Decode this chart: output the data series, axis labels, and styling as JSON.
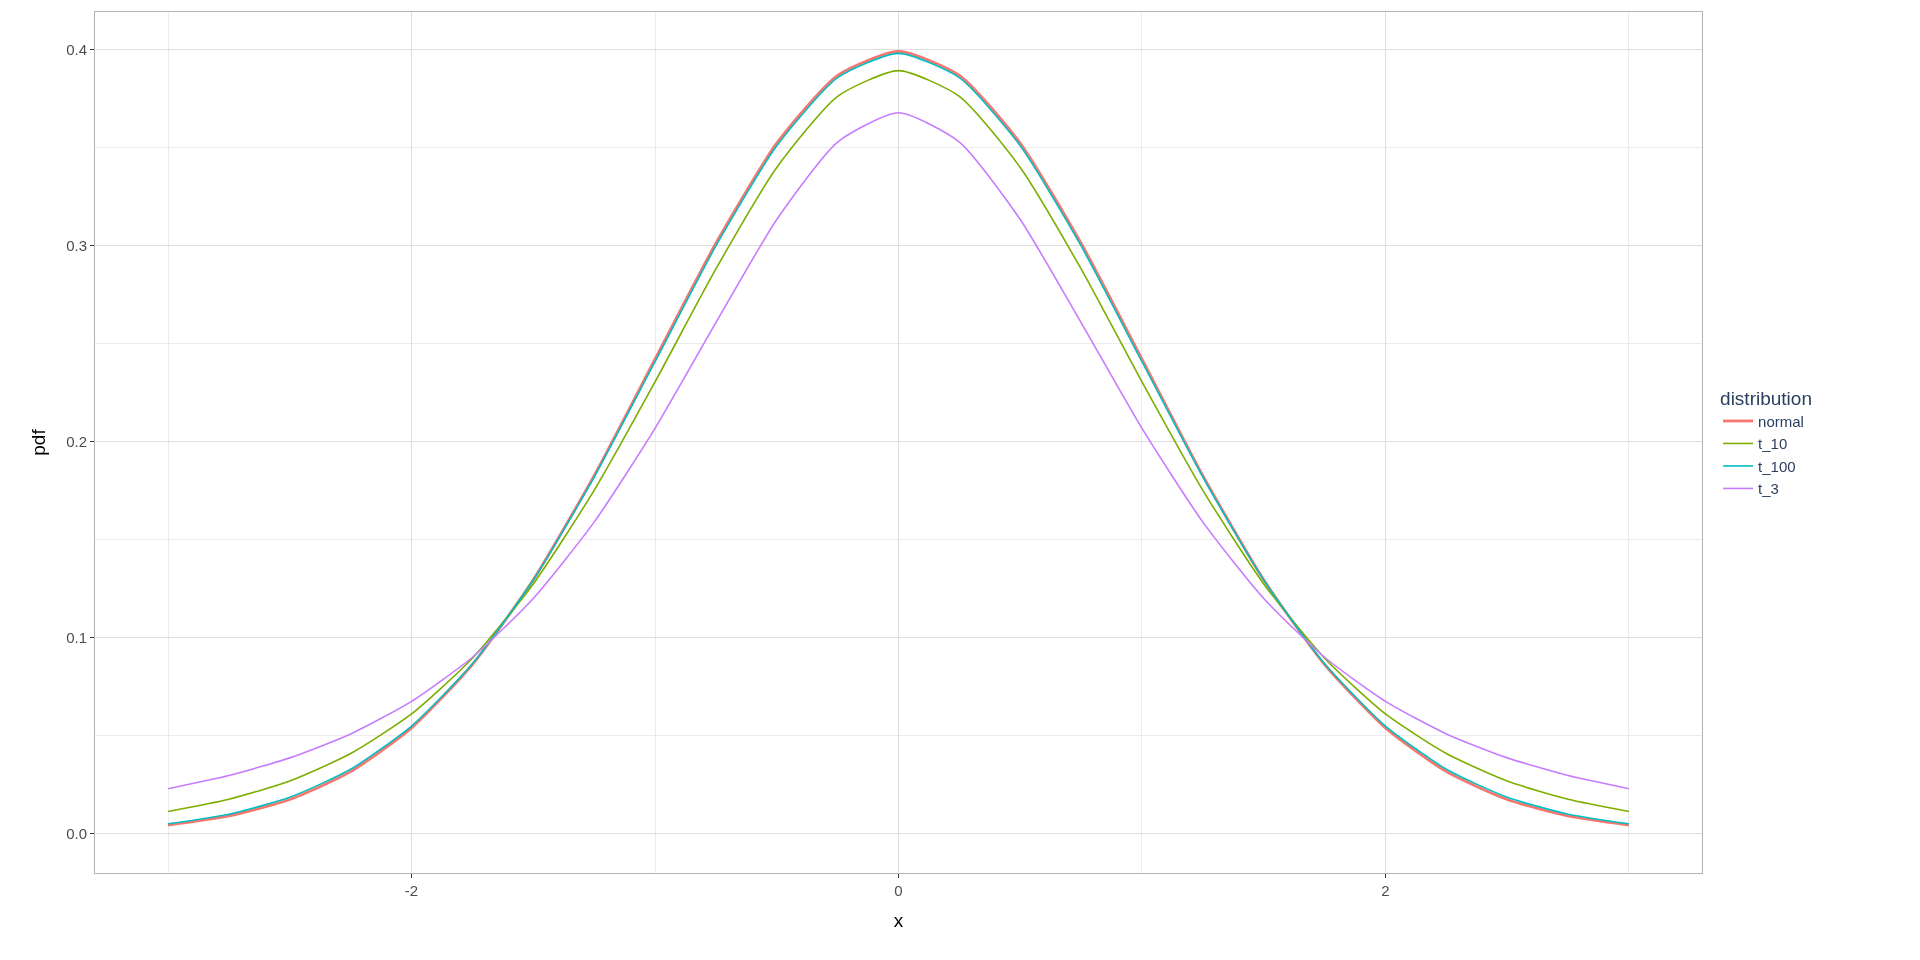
{
  "chart_data": {
    "type": "line",
    "xlabel": "x",
    "ylabel": "pdf",
    "legend_title": "distribution",
    "x": [
      -3,
      -2.75,
      -2.5,
      -2.25,
      -2,
      -1.75,
      -1.5,
      -1.25,
      -1,
      -0.75,
      -0.5,
      -0.25,
      0,
      0.25,
      0.5,
      0.75,
      1,
      1.25,
      1.5,
      1.75,
      2,
      2.25,
      2.5,
      2.75,
      3
    ],
    "series": [
      {
        "name": "normal",
        "color": "#f8766d",
        "values": [
          0.0044,
          0.0091,
          0.0175,
          0.0317,
          0.054,
          0.0863,
          0.1295,
          0.1826,
          0.242,
          0.3011,
          0.3521,
          0.3867,
          0.3989,
          0.3867,
          0.3521,
          0.3011,
          0.242,
          0.1826,
          0.1295,
          0.0863,
          0.054,
          0.0317,
          0.0175,
          0.0091,
          0.0044
        ]
      },
      {
        "name": "t_10",
        "color": "#7cae00",
        "values": [
          0.0114,
          0.0176,
          0.0269,
          0.0409,
          0.0611,
          0.0895,
          0.1274,
          0.1751,
          0.2304,
          0.288,
          0.3397,
          0.376,
          0.3891,
          0.376,
          0.3397,
          0.288,
          0.2304,
          0.1751,
          0.1274,
          0.0895,
          0.0611,
          0.0409,
          0.0269,
          0.0176,
          0.0114
        ]
      },
      {
        "name": "t_100",
        "color": "#00bfc4",
        "values": [
          0.0051,
          0.01,
          0.0186,
          0.0329,
          0.0549,
          0.0867,
          0.1294,
          0.1819,
          0.2407,
          0.2997,
          0.3508,
          0.3855,
          0.3979,
          0.3855,
          0.3508,
          0.2997,
          0.2407,
          0.1819,
          0.1294,
          0.0867,
          0.0549,
          0.0329,
          0.0186,
          0.01,
          0.0051
        ]
      },
      {
        "name": "t_3",
        "color": "#c77cff",
        "values": [
          0.023,
          0.0297,
          0.0387,
          0.0509,
          0.0675,
          0.09,
          0.12,
          0.1589,
          0.2067,
          0.2606,
          0.3132,
          0.3527,
          0.3676,
          0.3527,
          0.3132,
          0.2606,
          0.2067,
          0.1589,
          0.12,
          0.09,
          0.0675,
          0.0509,
          0.0387,
          0.0297,
          0.023
        ]
      }
    ],
    "xlim": [
      -3.3,
      3.3
    ],
    "xticks": [
      -2,
      0,
      2
    ],
    "ylim": [
      -0.02,
      0.419
    ],
    "yticks": [
      {
        "value": 0,
        "label": "0.0"
      },
      {
        "value": 0.1,
        "label": "0.1"
      },
      {
        "value": 0.2,
        "label": "0.2"
      },
      {
        "value": 0.3,
        "label": "0.3"
      },
      {
        "value": 0.4,
        "label": "0.4"
      }
    ],
    "grid": true,
    "legend": "right",
    "marker": "none",
    "line_style": "solid"
  }
}
